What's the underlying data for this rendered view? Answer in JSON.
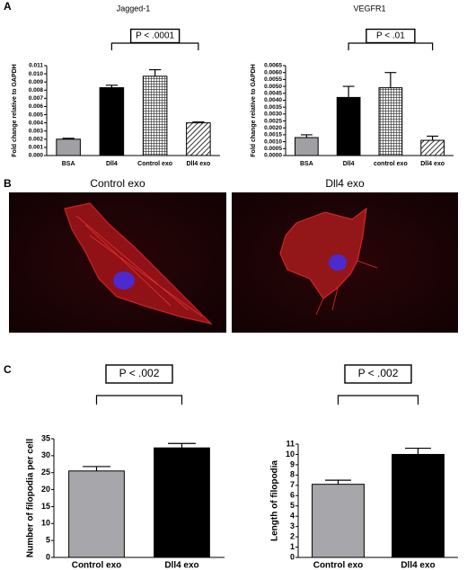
{
  "panels": [
    "A",
    "B",
    "C"
  ],
  "images": [
    {
      "label": "Control exo"
    },
    {
      "label": "Dll4 exo"
    }
  ],
  "chart_data": [
    {
      "type": "bar",
      "title": "Jagged-1",
      "y_label": "Fold change relative to GAPDH",
      "categories": [
        "BSA",
        "Dll4",
        "Control exo",
        "Dll4 exo"
      ],
      "values": [
        0.002,
        0.0083,
        0.0097,
        0.004
      ],
      "errors": [
        0.0001,
        0.0003,
        0.0008,
        0.0001
      ],
      "colors": [
        "#a0a0a4",
        "#000000",
        "#ffffff",
        "#ffffff"
      ],
      "patterns": [
        "solid",
        "solid",
        "crosshatch",
        "hatch"
      ],
      "ylim": [
        0,
        0.011
      ],
      "yticks": [
        {
          "value": 0,
          "label": "0.000"
        },
        {
          "value": 0.001,
          "label": "0.001"
        },
        {
          "value": 0.002,
          "label": "0.002"
        },
        {
          "value": 0.003,
          "label": "0.003"
        },
        {
          "value": 0.004,
          "label": "0.004"
        },
        {
          "value": 0.005,
          "label": "0.005"
        },
        {
          "value": 0.006,
          "label": "0.006"
        },
        {
          "value": 0.007,
          "label": "0.007"
        },
        {
          "value": 0.008,
          "label": "0.008"
        },
        {
          "value": 0.009,
          "label": "0.009"
        },
        {
          "value": 0.01,
          "label": "0.010"
        },
        {
          "value": 0.011,
          "label": "0.011"
        }
      ],
      "annotation": "P < .0001",
      "comparison": [
        1,
        3
      ]
    },
    {
      "type": "bar",
      "title": "VEGFR1",
      "y_label": "Fold change relative to GAPDH",
      "categories": [
        "BSA",
        "Dll4",
        "control exo",
        "Dll4 exo"
      ],
      "values": [
        0.0013,
        0.0042,
        0.0049,
        0.0011
      ],
      "errors": [
        0.0002,
        0.0008,
        0.0011,
        0.0003
      ],
      "colors": [
        "#a0a0a4",
        "#000000",
        "#ffffff",
        "#ffffff"
      ],
      "patterns": [
        "solid",
        "solid",
        "crosshatch",
        "hatch"
      ],
      "ylim": [
        0,
        0.0065
      ],
      "yticks": [
        {
          "value": 0,
          "label": "0.0000"
        },
        {
          "value": 0.0005,
          "label": "0.0005"
        },
        {
          "value": 0.001,
          "label": "0.0010"
        },
        {
          "value": 0.0015,
          "label": "0.0015"
        },
        {
          "value": 0.002,
          "label": "0.0020"
        },
        {
          "value": 0.0025,
          "label": "0.0025"
        },
        {
          "value": 0.003,
          "label": "0.0030"
        },
        {
          "value": 0.0035,
          "label": "0.0035"
        },
        {
          "value": 0.004,
          "label": "0.0040"
        },
        {
          "value": 0.0045,
          "label": "0.0045"
        },
        {
          "value": 0.005,
          "label": "0.0050"
        },
        {
          "value": 0.0055,
          "label": "0.0055"
        },
        {
          "value": 0.006,
          "label": "0.0060"
        },
        {
          "value": 0.0065,
          "label": "0.0065"
        }
      ],
      "annotation": "P < .01",
      "comparison": [
        1,
        3
      ]
    },
    {
      "type": "bar",
      "y_label": "Number of filopodia per cell",
      "categories": [
        "Control exo",
        "Dll4 exo"
      ],
      "values": [
        25.5,
        32.3
      ],
      "errors": [
        1.3,
        1.3
      ],
      "colors": [
        "#a6a6ab",
        "#000000"
      ],
      "patterns": [
        "solid",
        "solid"
      ],
      "ylim": [
        0,
        35
      ],
      "yticks": [
        0,
        5,
        10,
        15,
        20,
        25,
        30,
        35
      ],
      "annotation": "P < .002",
      "comparison": [
        0,
        1
      ]
    },
    {
      "type": "bar",
      "y_label": "Length of filopodia",
      "categories": [
        "Control exo",
        "Dll4 exo"
      ],
      "values": [
        7.1,
        10.0
      ],
      "errors": [
        0.4,
        0.6
      ],
      "colors": [
        "#a6a6ab",
        "#000000"
      ],
      "patterns": [
        "solid",
        "solid"
      ],
      "ylim": [
        0,
        11
      ],
      "yticks": [
        0,
        1,
        2,
        3,
        4,
        5,
        6,
        7,
        8,
        9,
        10,
        11
      ],
      "annotation": "P < .002",
      "comparison": [
        0,
        1
      ]
    }
  ]
}
